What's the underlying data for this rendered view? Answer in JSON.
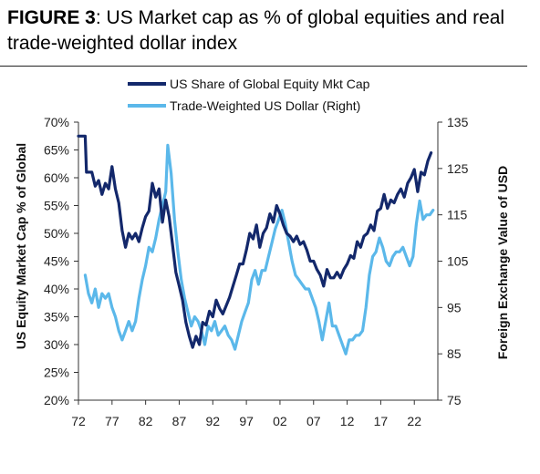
{
  "title": {
    "prefix": "FIGURE 3",
    "text": ": US Market cap as % of global equities and real trade-weighted dollar index"
  },
  "chart_data": {
    "type": "line",
    "xlabel": "",
    "ylabel_left": "US Equity Market Cap % of Global",
    "ylabel_right": "Foreign Exchange Value of USD",
    "x_ticks": [
      "72",
      "77",
      "82",
      "87",
      "92",
      "97",
      "02",
      "07",
      "12",
      "17",
      "22"
    ],
    "xlim": [
      1972,
      2025.5
    ],
    "ylim_left": [
      20,
      70
    ],
    "y_ticks_left": [
      "20%",
      "25%",
      "30%",
      "35%",
      "40%",
      "45%",
      "50%",
      "55%",
      "60%",
      "65%",
      "70%"
    ],
    "ylim_right": [
      75,
      135
    ],
    "y_ticks_right": [
      "75",
      "85",
      "95",
      "105",
      "115",
      "125",
      "135"
    ],
    "grid": false,
    "legend": "top-center",
    "colors": {
      "equity": "#13286b",
      "dollar": "#5bb8ea"
    },
    "series": [
      {
        "name": "US Share of Global Equity Mkt Cap",
        "axis": "left",
        "x": [
          1972.0,
          1973.0,
          1973.2,
          1974.0,
          1974.5,
          1975.0,
          1975.5,
          1976.0,
          1976.5,
          1977.0,
          1977.5,
          1978.0,
          1978.5,
          1979.0,
          1979.5,
          1980.0,
          1980.5,
          1981.0,
          1981.5,
          1982.0,
          1982.5,
          1983.0,
          1983.5,
          1984.0,
          1984.5,
          1985.0,
          1985.5,
          1986.0,
          1986.5,
          1987.0,
          1987.5,
          1988.0,
          1988.5,
          1989.0,
          1989.5,
          1990.0,
          1990.5,
          1991.0,
          1991.5,
          1992.0,
          1992.5,
          1993.0,
          1993.5,
          1994.0,
          1994.5,
          1995.0,
          1995.5,
          1996.0,
          1996.5,
          1997.0,
          1997.5,
          1998.0,
          1998.5,
          1999.0,
          1999.5,
          2000.0,
          2000.5,
          2001.0,
          2001.5,
          2002.0,
          2002.5,
          2003.0,
          2003.5,
          2004.0,
          2004.5,
          2005.0,
          2005.5,
          2006.0,
          2006.5,
          2007.0,
          2007.5,
          2008.0,
          2008.5,
          2009.0,
          2009.5,
          2010.0,
          2010.5,
          2011.0,
          2011.5,
          2012.0,
          2012.5,
          2013.0,
          2013.5,
          2014.0,
          2014.5,
          2015.0,
          2015.5,
          2016.0,
          2016.5,
          2017.0,
          2017.5,
          2018.0,
          2018.5,
          2019.0,
          2019.5,
          2020.0,
          2020.5,
          2021.0,
          2021.5,
          2022.0,
          2022.5,
          2023.0,
          2023.5,
          2024.0,
          2024.5
        ],
        "values": [
          67.5,
          67.5,
          61.0,
          61.0,
          58.5,
          59.5,
          57.0,
          59.0,
          58.0,
          62.0,
          58.0,
          55.5,
          50.5,
          47.5,
          50.0,
          49.0,
          50.0,
          48.5,
          51.0,
          53.0,
          54.0,
          59.0,
          56.5,
          58.0,
          52.0,
          56.0,
          53.0,
          48.0,
          43.0,
          40.5,
          38.0,
          34.0,
          31.5,
          29.5,
          31.5,
          30.0,
          34.0,
          33.5,
          36.0,
          35.0,
          38.0,
          36.5,
          35.5,
          37.0,
          38.5,
          40.5,
          42.5,
          44.5,
          44.5,
          47.0,
          50.0,
          49.0,
          51.5,
          47.5,
          50.0,
          51.0,
          53.5,
          52.0,
          55.0,
          53.5,
          51.5,
          50.0,
          49.5,
          48.5,
          49.5,
          48.0,
          48.5,
          47.0,
          45.0,
          45.0,
          43.5,
          42.5,
          40.5,
          43.5,
          42.0,
          42.0,
          43.0,
          42.0,
          43.5,
          44.5,
          46.0,
          45.5,
          48.5,
          47.5,
          49.5,
          50.0,
          51.5,
          50.5,
          54.0,
          54.5,
          57.0,
          54.5,
          56.0,
          55.5,
          57.0,
          58.0,
          56.5,
          59.0,
          60.0,
          61.5,
          57.5,
          61.0,
          60.5,
          63.0,
          64.5
        ]
      },
      {
        "name": "Trade-Weighted US Dollar (Right)",
        "axis": "right",
        "x": [
          1973.0,
          1973.5,
          1974.0,
          1974.5,
          1975.0,
          1975.5,
          1976.0,
          1976.5,
          1977.0,
          1977.5,
          1978.0,
          1978.5,
          1979.0,
          1979.5,
          1980.0,
          1980.5,
          1981.0,
          1981.5,
          1982.0,
          1982.5,
          1983.0,
          1983.5,
          1984.0,
          1984.5,
          1985.0,
          1985.3,
          1985.8,
          1986.3,
          1986.8,
          1987.3,
          1987.8,
          1988.3,
          1988.8,
          1989.3,
          1989.8,
          1990.3,
          1990.8,
          1991.3,
          1991.8,
          1992.3,
          1992.8,
          1993.3,
          1993.8,
          1994.3,
          1994.8,
          1995.3,
          1995.8,
          1996.3,
          1996.8,
          1997.3,
          1997.8,
          1998.3,
          1998.8,
          1999.3,
          1999.8,
          2000.3,
          2000.8,
          2001.3,
          2001.8,
          2002.3,
          2002.8,
          2003.3,
          2003.8,
          2004.3,
          2004.8,
          2005.3,
          2005.8,
          2006.3,
          2006.8,
          2007.3,
          2007.8,
          2008.3,
          2008.8,
          2009.3,
          2009.8,
          2010.3,
          2010.8,
          2011.3,
          2011.8,
          2012.3,
          2012.8,
          2013.3,
          2013.8,
          2014.3,
          2014.8,
          2015.3,
          2015.8,
          2016.3,
          2016.8,
          2017.3,
          2017.8,
          2018.3,
          2018.8,
          2019.3,
          2019.8,
          2020.3,
          2020.8,
          2021.3,
          2021.8,
          2022.3,
          2022.8,
          2023.3,
          2023.8,
          2024.3,
          2024.8
        ],
        "values": [
          102,
          98,
          96,
          99,
          95,
          98,
          97,
          98,
          95,
          93,
          90,
          88,
          90,
          92,
          90,
          92,
          97,
          101,
          104,
          108,
          107,
          110,
          114,
          117,
          120,
          130,
          124,
          114,
          107,
          101,
          97,
          94,
          91,
          93,
          92,
          90,
          87,
          91,
          90,
          92,
          89,
          90,
          91,
          89,
          88,
          86,
          89,
          92,
          94,
          96,
          101,
          103,
          100,
          103,
          103,
          106,
          109,
          112,
          114,
          116,
          113,
          109,
          105,
          102,
          101,
          100,
          99,
          99,
          97,
          95,
          92,
          88,
          92,
          96,
          91,
          91,
          89,
          87,
          85,
          88,
          88,
          89,
          89,
          90,
          95,
          102,
          106,
          107,
          110,
          108,
          105,
          104,
          106,
          107,
          107,
          108,
          106,
          104,
          106,
          113,
          118,
          114,
          115,
          115,
          116
        ]
      }
    ]
  }
}
